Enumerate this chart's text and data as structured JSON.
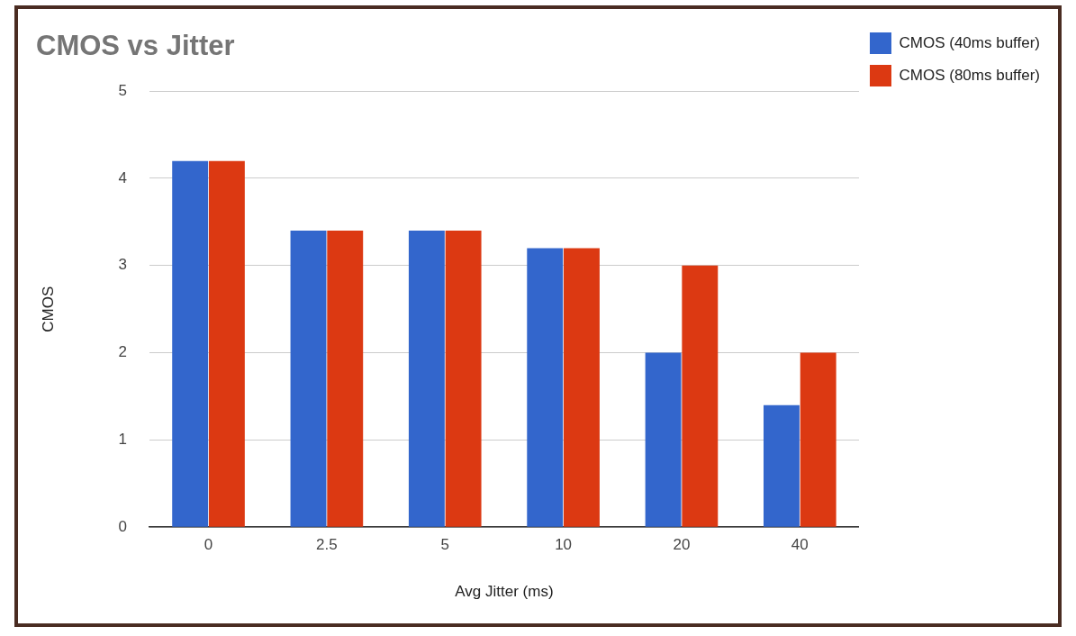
{
  "chart_data": {
    "type": "bar",
    "title": "CMOS vs Jitter",
    "xlabel": "Avg Jitter (ms)",
    "ylabel": "CMOS",
    "categories": [
      "0",
      "2.5",
      "5",
      "10",
      "20",
      "40"
    ],
    "series": [
      {
        "name": "CMOS (40ms buffer)",
        "color": "#3366cc",
        "values": [
          4.2,
          3.4,
          3.4,
          3.2,
          2.0,
          1.4
        ]
      },
      {
        "name": "CMOS (80ms buffer)",
        "color": "#dc3912",
        "values": [
          4.2,
          3.4,
          3.4,
          3.2,
          3.0,
          2.0
        ]
      }
    ],
    "ylim": [
      0,
      5
    ],
    "yticks": [
      0,
      1,
      2,
      3,
      4,
      5
    ],
    "grid": "y",
    "legend": "top right"
  }
}
